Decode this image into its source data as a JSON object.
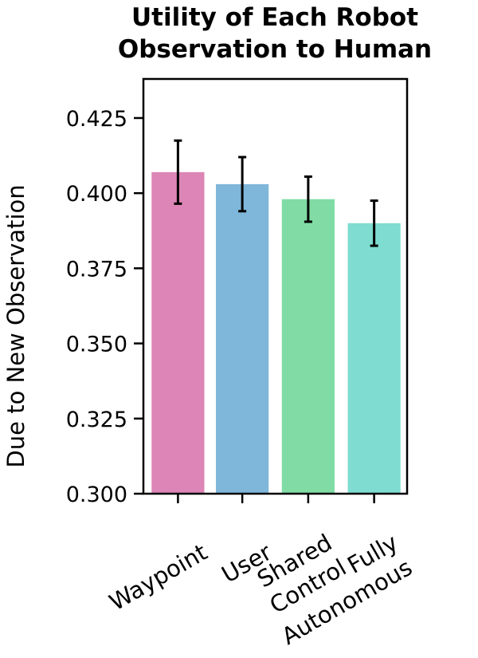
{
  "chart_data": {
    "type": "bar",
    "title": [
      "Utility of Each Robot",
      "Observation to Human"
    ],
    "ylabel": "Due to New Observation",
    "categories": [
      [
        "Waypoint"
      ],
      [
        "User"
      ],
      [
        "Shared",
        "Control"
      ],
      [
        "Fully",
        "Autonomous"
      ]
    ],
    "values": [
      0.407,
      0.403,
      0.398,
      0.39
    ],
    "error": [
      0.0105,
      0.009,
      0.0075,
      0.0075
    ],
    "colors": [
      "#dc85b6",
      "#7fb7da",
      "#80dca4",
      "#7fdcd0"
    ],
    "ylim": [
      0.3,
      0.438
    ],
    "yticks": [
      0.3,
      0.325,
      0.35,
      0.375,
      0.4,
      0.425
    ],
    "ytick_labels": [
      "0.300",
      "0.325",
      "0.350",
      "0.375",
      "0.400",
      "0.425"
    ],
    "grid": false
  }
}
